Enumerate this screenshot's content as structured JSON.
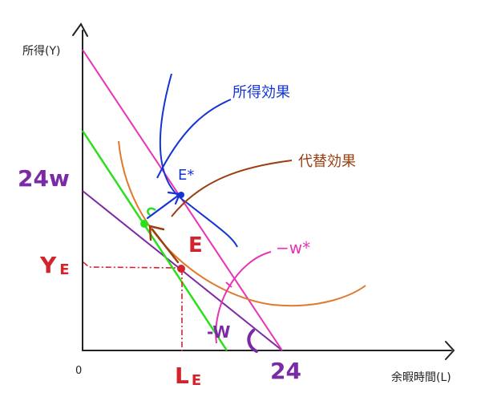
{
  "axes": {
    "y_label": "所得(Y)",
    "x_label": "余暇時間(L)",
    "origin": "0"
  },
  "labels": {
    "income_effect": "所得効果",
    "substitution_effect": "代替効果",
    "e_star": "E*",
    "e": "E",
    "c": "C",
    "twenty_four_w": "24w",
    "twenty_four": "24",
    "y_e_main": "Y",
    "y_e_sub": "E",
    "l_e_main": "L",
    "l_e_sub": "E",
    "neg_w_star": "−w*",
    "neg_w": "-W"
  },
  "colors": {
    "axis": "#222222",
    "purple": "#7b2aa6",
    "pink": "#e833b4",
    "green": "#2be01b",
    "orange": "#e0792e",
    "blue": "#1534d6",
    "brown": "#9a3f12",
    "red": "#d3232c"
  }
}
